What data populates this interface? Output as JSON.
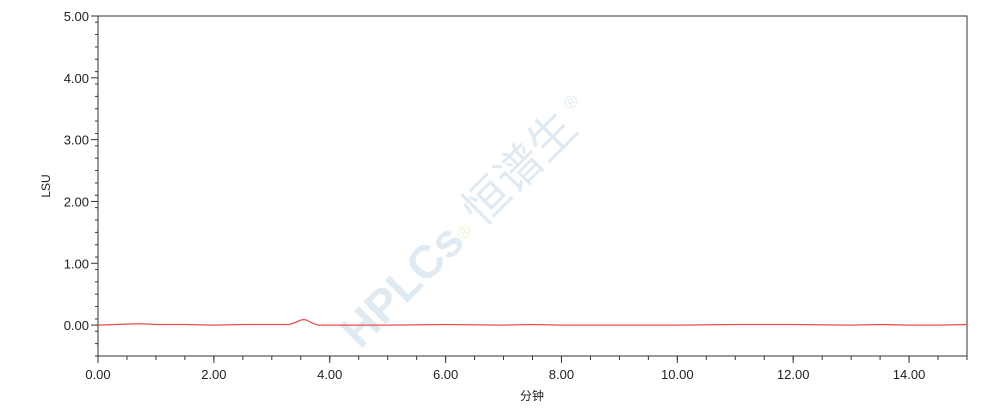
{
  "chart_data": {
    "type": "line",
    "title": "",
    "xlabel": "分钟",
    "ylabel": "LSU",
    "xlim": [
      0,
      15
    ],
    "ylim": [
      -0.5,
      5
    ],
    "grid": false,
    "x_ticks": [
      "0.00",
      "2.00",
      "4.00",
      "6.00",
      "8.00",
      "10.00",
      "12.00",
      "14.00"
    ],
    "x_tick_values": [
      0,
      2,
      4,
      6,
      8,
      10,
      12,
      14
    ],
    "y_ticks": [
      "0.00",
      "1.00",
      "2.00",
      "3.00",
      "4.00",
      "5.00"
    ],
    "y_tick_values": [
      0,
      1,
      2,
      3,
      4,
      5
    ],
    "series": [
      {
        "color": "#e8504f",
        "x": [
          0,
          0.3,
          0.6,
          0.8,
          1.0,
          1.5,
          2.0,
          2.5,
          3.0,
          3.3,
          3.4,
          3.5,
          3.55,
          3.6,
          3.7,
          3.8,
          4.0,
          4.5,
          5.0,
          6.0,
          7.0,
          7.5,
          8.0,
          9.0,
          10.0,
          11.0,
          12.0,
          13.0,
          13.5,
          14.0,
          14.5,
          15.0
        ],
        "y": [
          0.0,
          0.01,
          0.02,
          0.02,
          0.01,
          0.01,
          0.0,
          0.01,
          0.01,
          0.01,
          0.04,
          0.08,
          0.09,
          0.08,
          0.03,
          0.0,
          0.0,
          0.0,
          0.0,
          0.01,
          0.0,
          0.01,
          0.0,
          0.0,
          0.0,
          0.01,
          0.01,
          0.0,
          0.01,
          0.0,
          0.0,
          0.01
        ]
      }
    ]
  },
  "watermark": "HPLCs®恒谱生®"
}
